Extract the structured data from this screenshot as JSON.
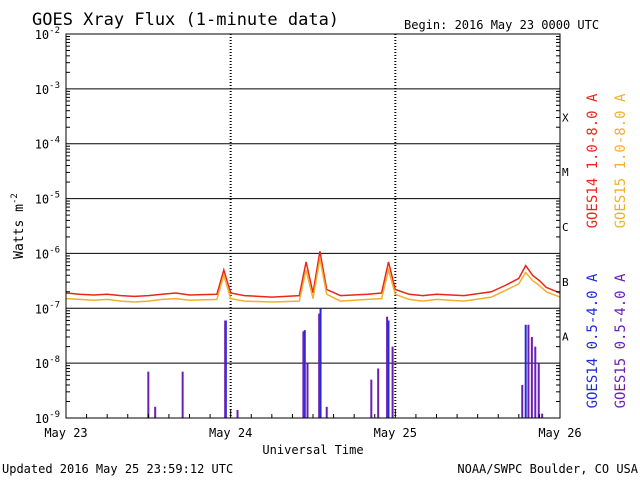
{
  "header": {
    "title": "GOES Xray Flux (1-minute data)",
    "begin": "Begin:  2016 May 23 0000 UTC"
  },
  "footer": {
    "updated": "Updated 2016 May 25 23:59:12 UTC",
    "credit": "NOAA/SWPC Boulder, CO USA"
  },
  "chart_data": {
    "type": "line",
    "title": "GOES Xray Flux (1-minute data)",
    "xlabel": "Universal Time",
    "ylabel": "Watts m",
    "ylabel_superscript": "-2",
    "yscale": "log",
    "ylim": [
      1e-09,
      0.01
    ],
    "xlim": [
      0,
      72
    ],
    "x_unit": "hours since 2016 May 23 0000 UTC",
    "y_tick_labels": [
      {
        "base": "10",
        "exp": "-2"
      },
      {
        "base": "10",
        "exp": "-3"
      },
      {
        "base": "10",
        "exp": "-4"
      },
      {
        "base": "10",
        "exp": "-5"
      },
      {
        "base": "10",
        "exp": "-6"
      },
      {
        "base": "10",
        "exp": "-7"
      },
      {
        "base": "10",
        "exp": "-8"
      },
      {
        "base": "10",
        "exp": "-9"
      }
    ],
    "x_tick_labels": [
      "May 23",
      "May 24",
      "May 25",
      "May 26"
    ],
    "flare_classes": [
      "X",
      "M",
      "C",
      "B",
      "A"
    ],
    "grid": true,
    "legend_placement": "right",
    "series": [
      {
        "name": "GOES14 1.0-8.0 A",
        "color": "#e8271a",
        "kind": "line",
        "points": [
          [
            0,
            1.9e-07
          ],
          [
            2,
            1.8e-07
          ],
          [
            4,
            1.75e-07
          ],
          [
            6,
            1.8e-07
          ],
          [
            8,
            1.7e-07
          ],
          [
            10,
            1.65e-07
          ],
          [
            12,
            1.7e-07
          ],
          [
            14,
            1.8e-07
          ],
          [
            16,
            1.9e-07
          ],
          [
            18,
            1.75e-07
          ],
          [
            22,
            1.8e-07
          ],
          [
            23,
            5e-07
          ],
          [
            24,
            1.9e-07
          ],
          [
            26,
            1.7e-07
          ],
          [
            30,
            1.6e-07
          ],
          [
            34,
            1.7e-07
          ],
          [
            35,
            7e-07
          ],
          [
            36,
            1.9e-07
          ],
          [
            37,
            1.1e-06
          ],
          [
            38,
            2.2e-07
          ],
          [
            40,
            1.7e-07
          ],
          [
            44,
            1.8e-07
          ],
          [
            46,
            1.9e-07
          ],
          [
            47,
            7e-07
          ],
          [
            48,
            2.2e-07
          ],
          [
            50,
            1.8e-07
          ],
          [
            52,
            1.7e-07
          ],
          [
            54,
            1.8e-07
          ],
          [
            58,
            1.7e-07
          ],
          [
            62,
            2e-07
          ],
          [
            64,
            2.6e-07
          ],
          [
            66,
            3.5e-07
          ],
          [
            67,
            6e-07
          ],
          [
            68,
            4e-07
          ],
          [
            69,
            3.2e-07
          ],
          [
            70,
            2.4e-07
          ],
          [
            72,
            1.9e-07
          ]
        ]
      },
      {
        "name": "GOES15 1.0-8.0 A",
        "color": "#f1b02c",
        "kind": "line",
        "points": [
          [
            0,
            1.5e-07
          ],
          [
            2,
            1.45e-07
          ],
          [
            4,
            1.4e-07
          ],
          [
            6,
            1.45e-07
          ],
          [
            8,
            1.35e-07
          ],
          [
            10,
            1.3e-07
          ],
          [
            12,
            1.35e-07
          ],
          [
            14,
            1.45e-07
          ],
          [
            16,
            1.5e-07
          ],
          [
            18,
            1.4e-07
          ],
          [
            22,
            1.45e-07
          ],
          [
            23,
            4e-07
          ],
          [
            24,
            1.5e-07
          ],
          [
            26,
            1.35e-07
          ],
          [
            30,
            1.3e-07
          ],
          [
            34,
            1.35e-07
          ],
          [
            35,
            5e-07
          ],
          [
            36,
            1.5e-07
          ],
          [
            37,
            8e-07
          ],
          [
            38,
            1.8e-07
          ],
          [
            40,
            1.35e-07
          ],
          [
            44,
            1.45e-07
          ],
          [
            46,
            1.5e-07
          ],
          [
            47,
            5e-07
          ],
          [
            48,
            1.8e-07
          ],
          [
            50,
            1.45e-07
          ],
          [
            52,
            1.35e-07
          ],
          [
            54,
            1.45e-07
          ],
          [
            58,
            1.35e-07
          ],
          [
            62,
            1.6e-07
          ],
          [
            64,
            2.1e-07
          ],
          [
            66,
            2.8e-07
          ],
          [
            67,
            4.5e-07
          ],
          [
            68,
            3.2e-07
          ],
          [
            69,
            2.6e-07
          ],
          [
            70,
            2e-07
          ],
          [
            72,
            1.6e-07
          ]
        ]
      },
      {
        "name": "GOES14 0.5-4.0 A",
        "color": "#1f2bd8",
        "kind": "spikes",
        "points": [
          [
            23.3,
            6e-08
          ],
          [
            34.8,
            4e-08
          ],
          [
            37.1,
            1e-07
          ],
          [
            47.0,
            6e-08
          ],
          [
            67.0,
            5e-08
          ]
        ]
      },
      {
        "name": "GOES15 0.5-4.0 A",
        "color": "#6a1eb4",
        "kind": "spikes",
        "points": [
          [
            12,
            7e-09
          ],
          [
            13,
            1.6e-09
          ],
          [
            17,
            7e-09
          ],
          [
            23.2,
            6e-08
          ],
          [
            25,
            1.4e-09
          ],
          [
            34.6,
            3.8e-08
          ],
          [
            35.2,
            1e-08
          ],
          [
            36.9,
            8e-08
          ],
          [
            38,
            1.6e-09
          ],
          [
            44.5,
            5e-09
          ],
          [
            45.5,
            8e-09
          ],
          [
            46.8,
            7e-08
          ],
          [
            47.6,
            2e-08
          ],
          [
            66.5,
            4e-09
          ],
          [
            67.4,
            5e-08
          ],
          [
            67.9,
            3e-08
          ],
          [
            68.4,
            2e-08
          ],
          [
            68.9,
            1e-08
          ],
          [
            69.4,
            1.2e-09
          ]
        ]
      }
    ]
  }
}
